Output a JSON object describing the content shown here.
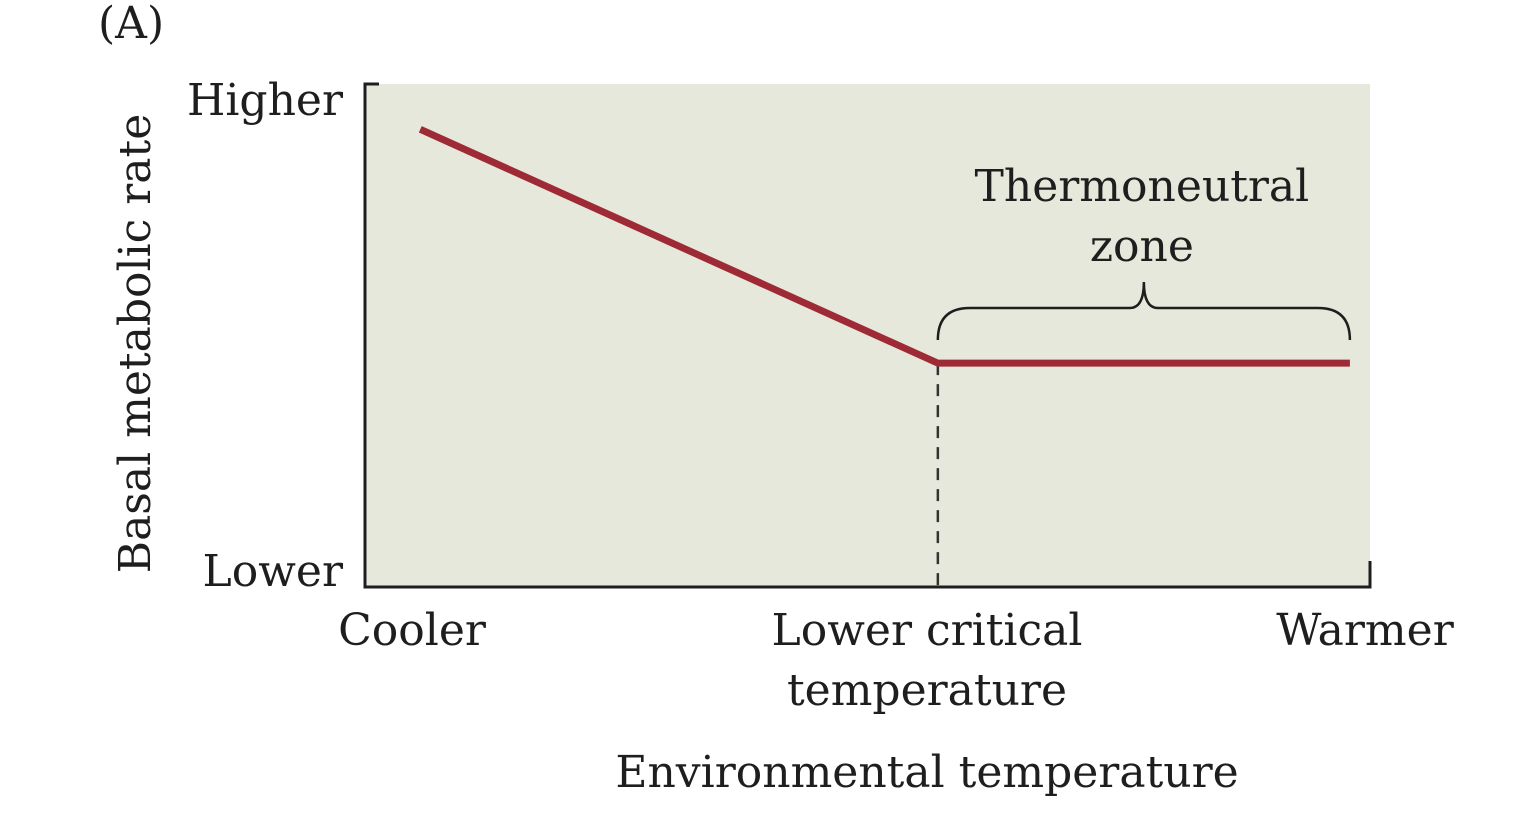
{
  "panel_label": "(A)",
  "colors": {
    "plot_background": "#e6e8dc",
    "line": "#9e2a36",
    "axis": "#1e1e1e"
  },
  "chart_data": {
    "type": "line",
    "title": "",
    "xlabel": "Environmental temperature",
    "ylabel": "Basal metabolic rate",
    "xlim": [
      0,
      10
    ],
    "ylim": [
      0,
      10
    ],
    "x_ticks": [
      {
        "x": 0,
        "label": "Cooler"
      },
      {
        "x": 5.7,
        "label": "Lower critical temperature",
        "lines": [
          "Lower critical",
          "temperature"
        ]
      },
      {
        "x": 10,
        "label": "Warmer"
      }
    ],
    "y_ticks": [
      {
        "y": 10,
        "label": "Higher"
      },
      {
        "y": 0,
        "label": "Lower"
      }
    ],
    "grid": false,
    "series": [
      {
        "x": [
          0.55,
          5.7,
          9.8
        ],
        "y": [
          9.1,
          4.45,
          4.45
        ]
      }
    ],
    "reference_lines": [
      {
        "orientation": "vertical",
        "x": 5.7,
        "style": "dashed"
      }
    ],
    "annotations": [
      {
        "text": "Thermoneutral zone",
        "lines": [
          "Thermoneutral",
          "zone"
        ],
        "x_start": 5.7,
        "x_end": 9.8,
        "shape": "brace"
      }
    ]
  }
}
